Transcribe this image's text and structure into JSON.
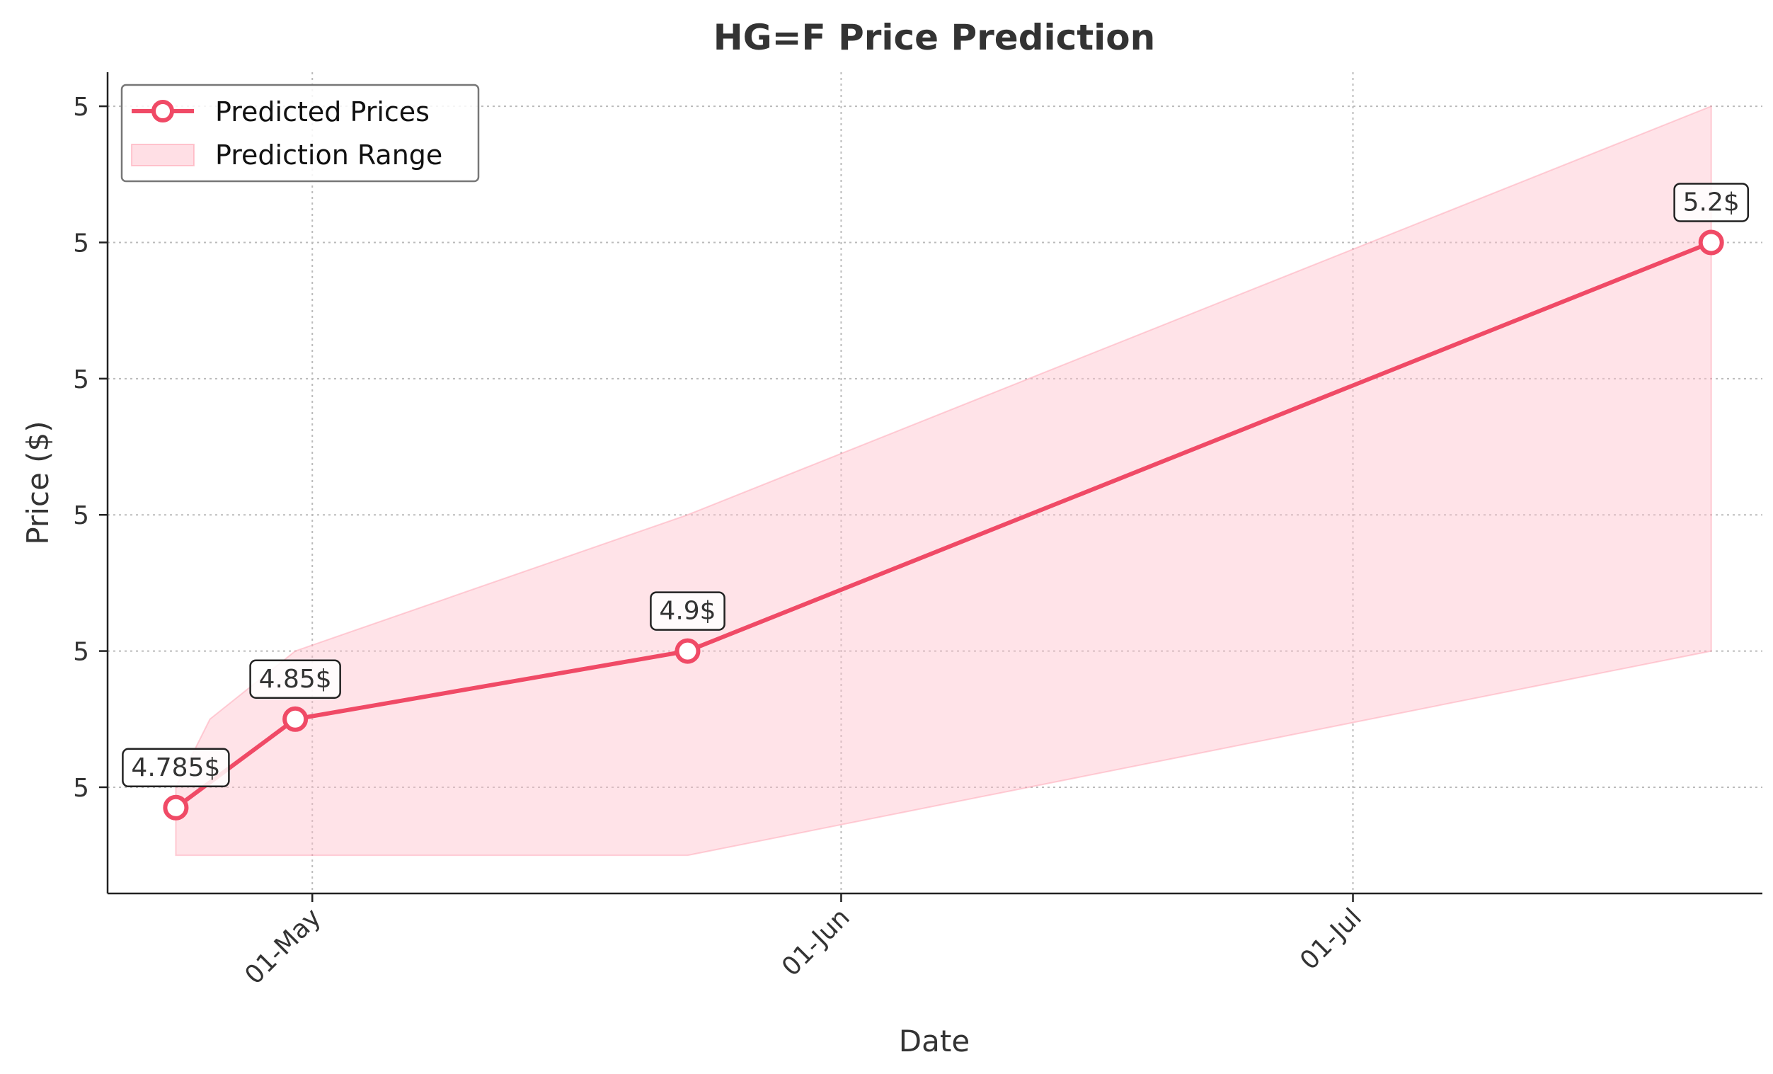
{
  "chart_data": {
    "type": "line",
    "title": "HG=F Price Prediction",
    "xlabel": "Date",
    "ylabel": "Price ($)",
    "x": [
      "2024-04-23",
      "2024-04-30",
      "2024-05-23",
      "2024-07-22"
    ],
    "series": [
      {
        "name": "Predicted Prices",
        "values": [
          4.785,
          4.85,
          4.9,
          5.2
        ],
        "labels": [
          "4.785$",
          "4.85$",
          "4.9$",
          "5.2$"
        ],
        "color": "#f04a66"
      }
    ],
    "range": {
      "name": "Prediction Range",
      "x": [
        "2024-04-23",
        "2024-04-25",
        "2024-04-30",
        "2024-05-23",
        "2024-07-22"
      ],
      "lower": [
        4.75,
        4.75,
        4.75,
        4.75,
        4.9
      ],
      "upper": [
        4.8,
        4.85,
        4.9,
        5.0,
        5.3
      ],
      "color": "#ffc0cb"
    },
    "xlim": [
      "2024-04-19",
      "2024-07-25"
    ],
    "ylim": [
      4.722,
      5.325
    ],
    "xticks": [
      {
        "value": "2024-05-01",
        "label": "01-May"
      },
      {
        "value": "2024-06-01",
        "label": "01-Jun"
      },
      {
        "value": "2024-07-01",
        "label": "01-Jul"
      }
    ],
    "yticks": [
      {
        "value": 4.8,
        "label": "5"
      },
      {
        "value": 4.9,
        "label": "5"
      },
      {
        "value": 5.0,
        "label": "5"
      },
      {
        "value": 5.1,
        "label": "5"
      },
      {
        "value": 5.2,
        "label": "5"
      },
      {
        "value": 5.3,
        "label": "5"
      }
    ],
    "grid": true,
    "legend": "top-left"
  }
}
